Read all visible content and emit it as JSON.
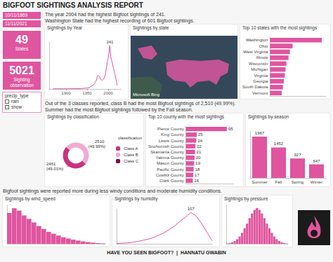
{
  "title": "BIGFOOT SIGHTINGS ANALYSIS REPORT",
  "filters": {
    "dates": [
      "10/11/1869",
      "11/11/2021"
    ],
    "slicer": {
      "title": "precip_type",
      "items": [
        "rain",
        "snow"
      ]
    }
  },
  "kpis": [
    {
      "value": 49,
      "label": "States"
    },
    {
      "value": 5021,
      "label": "Sighting observation"
    }
  ],
  "notes": [
    [
      "The year 2004 had the highest Bigfoot sightings of 241.",
      "Washington State had the highest recording of 601 Bigfoot sightings."
    ],
    [
      "Out of the 3 classes reported, class B had the most Bigfoot sightings of 2,510 (49.99%).",
      "Summer had the most Bigfoot sightings followed by the Fall season."
    ],
    [
      "Bigfoot sightings were reported more during less windy conditions and moderate humidity conditions."
    ]
  ],
  "footer": "HAVE YOU SEEN BIGFOOT?  |  HANNATU GWABIN",
  "chart_data": [
    {
      "type": "line",
      "title": "Sightings by Year",
      "x": [
        1869,
        1900,
        1930,
        1950,
        1955,
        1960,
        1965,
        1968,
        1970,
        1972,
        1974,
        1976,
        1978,
        1980,
        1982,
        1984,
        1986,
        1988,
        1990,
        1992,
        1994,
        1996,
        1998,
        2000,
        2002,
        2003,
        2004,
        2005,
        2006,
        2008,
        2010,
        2012,
        2014,
        2016,
        2018,
        2020,
        2021
      ],
      "values": [
        1,
        1,
        2,
        5,
        8,
        15,
        22,
        30,
        40,
        48,
        70,
        75,
        72,
        65,
        55,
        50,
        48,
        52,
        60,
        70,
        90,
        120,
        150,
        170,
        200,
        230,
        241,
        210,
        180,
        160,
        140,
        120,
        100,
        80,
        60,
        40,
        20
      ],
      "color": "#e0559f",
      "xlim": [
        1860,
        2030
      ],
      "xticks": [
        1900,
        1950,
        2000
      ],
      "ylim": [
        0,
        260
      ],
      "tick_labels": "x",
      "annotations": [
        {
          "x": 2004,
          "y": 241,
          "text": "241"
        }
      ]
    },
    {
      "type": "map",
      "title": "Sightings by state",
      "credit": "Microsoft Bing"
    },
    {
      "type": "bar",
      "orientation": "horizontal",
      "title": "Top 10 states with the most sightings",
      "categories": [
        "Washington",
        "Ohio",
        "West Virginia",
        "Illinois",
        "Wisconsin",
        "Michigan",
        "Virginia",
        "Georgia",
        "South Dakota",
        "Vermont"
      ],
      "values": [
        601,
        262,
        230,
        215,
        190,
        180,
        172,
        160,
        150,
        135
      ],
      "color": "#e0559f",
      "xlim": [
        0,
        650
      ],
      "tick_labels": "y"
    },
    {
      "type": "pie",
      "title": "Sightings by classification",
      "categories": [
        "Class A",
        "Class B",
        "Class C"
      ],
      "values": [
        2461,
        2510,
        50
      ],
      "value_labels": [
        "2461 (49.01%)",
        "2510 (49.99%)",
        null
      ],
      "colors": [
        "#c8337f",
        "#f4a8d2",
        "#7d1048"
      ],
      "legend": "right",
      "legend_title": "classification"
    },
    {
      "type": "bar",
      "orientation": "horizontal",
      "title": "Top 10 county with the most sightings",
      "categories": [
        "Pierce County",
        "King County",
        "Lewis County",
        "Snohomish County",
        "Skamania County",
        "Yakima County",
        "Mason County",
        "Pacific County",
        "Cowlitz County",
        "Clark County"
      ],
      "values": [
        95,
        25,
        24,
        22,
        21,
        20,
        19,
        18,
        17,
        16
      ],
      "color": "#e0559f",
      "xlim": [
        0,
        110
      ],
      "tick_labels": "y",
      "data_labels": true
    },
    {
      "type": "bar",
      "title": "Sightings by season",
      "categories": [
        "Summer",
        "Fall",
        "Spring",
        "Winter"
      ],
      "values": [
        1967,
        1452,
        927,
        647
      ],
      "color": "#e0559f",
      "ylim": [
        0,
        2200
      ],
      "tick_labels": "x",
      "data_labels": true
    },
    {
      "type": "histogram",
      "title": "Sightings by wind_speed",
      "bins": [
        0,
        1,
        2,
        3,
        4,
        5,
        6,
        7,
        8,
        9,
        10,
        11,
        12,
        13,
        14,
        15,
        16,
        17,
        18,
        19,
        20
      ],
      "values": [
        520,
        600,
        560,
        480,
        420,
        360,
        300,
        250,
        200,
        170,
        140,
        110,
        90,
        70,
        55,
        40,
        30,
        20,
        12,
        8
      ],
      "color": "#e0559f",
      "xlim": [
        0,
        20
      ],
      "ylim": [
        0,
        650
      ],
      "tick_labels": false
    },
    {
      "type": "line",
      "title": "Sightings by humidity",
      "x": [
        0.1,
        0.15,
        0.2,
        0.25,
        0.3,
        0.35,
        0.4,
        0.45,
        0.5,
        0.55,
        0.6,
        0.65,
        0.7,
        0.75,
        0.8,
        0.85,
        0.9,
        0.95,
        1.0
      ],
      "values": [
        1,
        2,
        3,
        5,
        8,
        12,
        16,
        22,
        30,
        38,
        50,
        62,
        78,
        92,
        107,
        95,
        70,
        40,
        10
      ],
      "color": "#e0559f",
      "xlim": [
        0.1,
        1.0
      ],
      "ylim": [
        0,
        120
      ],
      "tick_labels": false,
      "annotations": [
        {
          "x": 0.8,
          "y": 107,
          "text": "107"
        }
      ]
    },
    {
      "type": "histogram",
      "title": "Sightings by pressure",
      "bins": [
        990,
        992,
        994,
        996,
        998,
        1000,
        1002,
        1004,
        1006,
        1008,
        1010,
        1012,
        1014,
        1016,
        1018,
        1020,
        1022,
        1024,
        1026,
        1028,
        1030,
        1032,
        1034,
        1036,
        1038,
        1040
      ],
      "values": [
        2,
        4,
        8,
        15,
        25,
        40,
        60,
        85,
        110,
        140,
        165,
        185,
        195,
        185,
        165,
        140,
        110,
        85,
        60,
        40,
        25,
        15,
        8,
        4,
        2
      ],
      "color": "#e0559f",
      "xlim": [
        990,
        1040
      ],
      "ylim": [
        0,
        210
      ],
      "tick_labels": false
    }
  ]
}
